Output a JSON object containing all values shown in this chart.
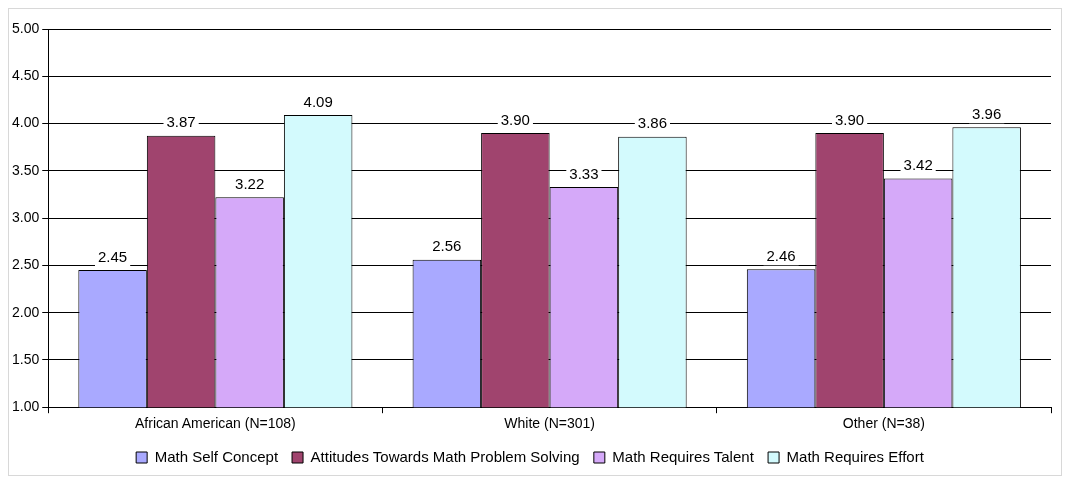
{
  "chart_data": {
    "type": "bar",
    "categories": [
      "African American (N=108)",
      "White (N=301)",
      "Other (N=38)"
    ],
    "series": [
      {
        "name": "Math Self Concept",
        "color": "#a9a9ff",
        "values": [
          2.45,
          2.56,
          2.46
        ],
        "value_labels": [
          "2.45",
          "2.56",
          "2.46"
        ]
      },
      {
        "name": "Attitudes Towards Math Problem Solving",
        "color": "#a0446e",
        "values": [
          3.87,
          3.9,
          3.9
        ],
        "value_labels": [
          "3.87",
          "3.90",
          "3.90"
        ]
      },
      {
        "name": "Math Requires Talent",
        "color": "#d5a9f9",
        "values": [
          3.22,
          3.33,
          3.42
        ],
        "value_labels": [
          "3.22",
          "3.33",
          "3.42"
        ]
      },
      {
        "name": "Math Requires Effort",
        "color": "#d3fafd",
        "values": [
          4.09,
          3.86,
          3.96
        ],
        "value_labels": [
          "4.09",
          "3.86",
          "3.96"
        ]
      }
    ],
    "ylim": [
      1,
      5
    ],
    "yticks": [
      {
        "value": 1,
        "label": "1.00"
      },
      {
        "value": 1.5,
        "label": "1.50"
      },
      {
        "value": 2,
        "label": "2.00"
      },
      {
        "value": 2.5,
        "label": "2.50"
      },
      {
        "value": 3,
        "label": "3.00"
      },
      {
        "value": 3.5,
        "label": "3.50"
      },
      {
        "value": 4,
        "label": "4.00"
      },
      {
        "value": 4.5,
        "label": "4.50"
      },
      {
        "value": 5,
        "label": "5.00"
      }
    ],
    "grid": "y",
    "legend": "bottom"
  }
}
